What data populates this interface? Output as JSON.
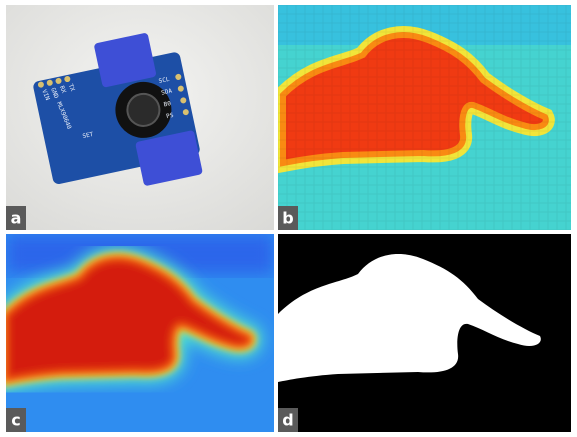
{
  "panels": [
    {
      "label": "a"
    },
    {
      "label": "b"
    },
    {
      "label": "c"
    },
    {
      "label": "d"
    }
  ],
  "board": {
    "chip": "MLX90640",
    "pins_left": [
      "VIN",
      "GND",
      "RX",
      "TX"
    ],
    "pins_right": [
      "SCL",
      "SDA",
      "B0",
      "PS"
    ],
    "button": "SET"
  }
}
